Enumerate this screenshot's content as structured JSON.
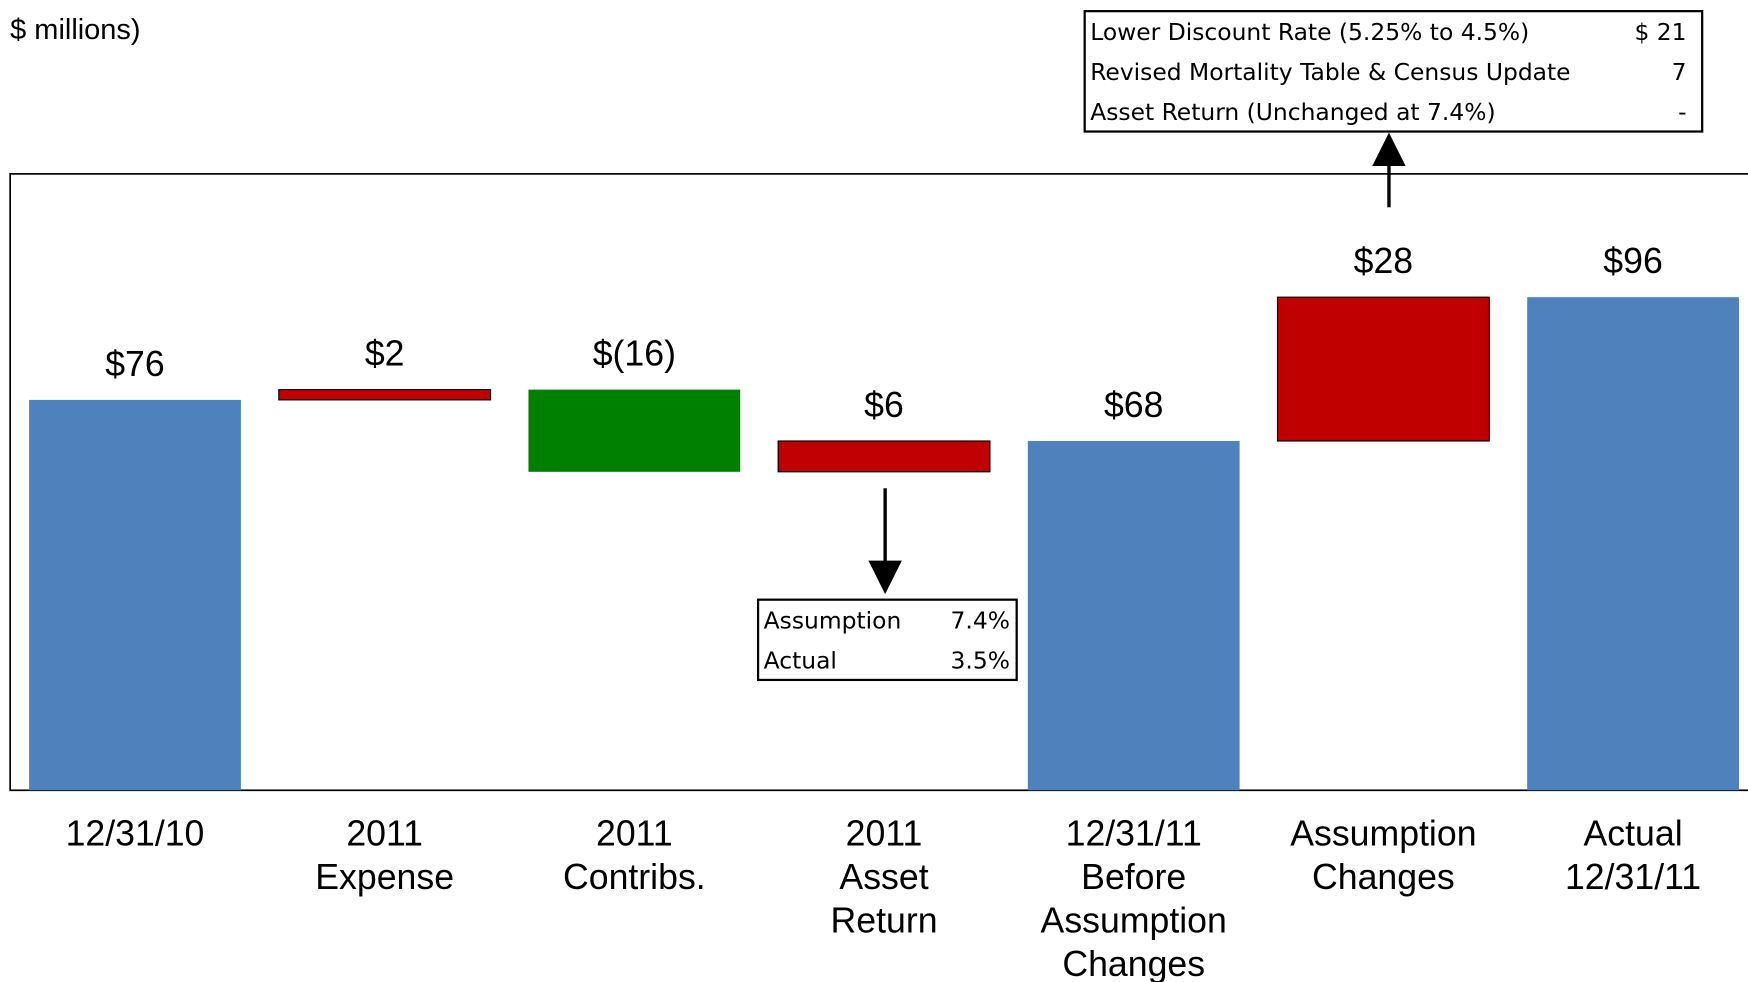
{
  "chart_data": {
    "type": "waterfall",
    "subtitle": "$ millions)",
    "categories": [
      [
        "12/31/10"
      ],
      [
        "2011",
        "Expense"
      ],
      [
        "2011",
        "Contribs."
      ],
      [
        "2011",
        "Asset",
        "Return"
      ],
      [
        "12/31/11",
        "Before",
        "Assumption",
        "Changes"
      ],
      [
        "Assumption",
        "Changes"
      ],
      [
        "Actual",
        "12/31/11"
      ]
    ],
    "values": [
      76,
      2,
      -16,
      6,
      68,
      28,
      96
    ],
    "value_labels": [
      "$76",
      "$2",
      "$(16)",
      "$6",
      "$68",
      "$28",
      "$96"
    ],
    "measures": [
      "total",
      "relative",
      "relative",
      "relative",
      "total",
      "relative",
      "total"
    ],
    "colors": [
      "#4f81bd",
      "#c00000",
      "#008000",
      "#c00000",
      "#4f81bd",
      "#c00000",
      "#4f81bd"
    ],
    "ylim": [
      0,
      120
    ],
    "annotations": [
      {
        "rows": [
          [
            "Lower Discount Rate (5.25% to 4.5%)",
            "$ 21"
          ],
          [
            "Revised Mortality Table & Census Update",
            "7"
          ],
          [
            "Asset Return (Unchanged at 7.4%)",
            "-"
          ]
        ]
      },
      {
        "rows": [
          [
            "Assumption",
            "7.4%"
          ],
          [
            "Actual",
            "3.5%"
          ]
        ]
      }
    ]
  }
}
